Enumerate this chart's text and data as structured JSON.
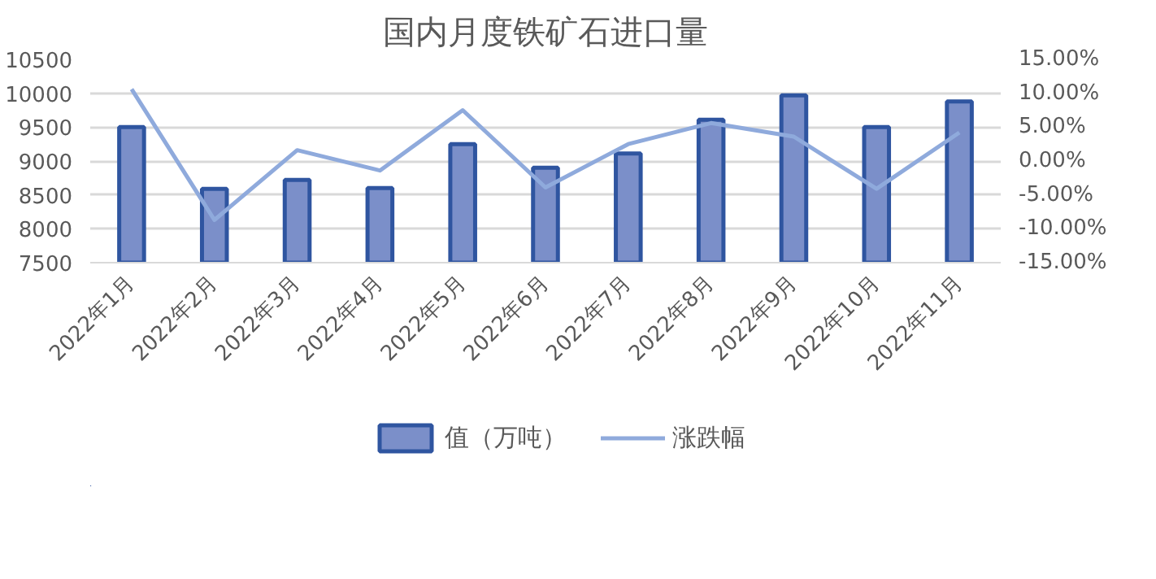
{
  "chart_data": {
    "type": "bar",
    "title": "国内月度铁矿石进口量",
    "categories": [
      "2022年1月",
      "2022年2月",
      "2022年3月",
      "2022年4月",
      "2022年5月",
      "2022年6月",
      "2022年7月",
      "2022年8月",
      "2022年9月",
      "2022年10月",
      "2022年11月"
    ],
    "series": [
      {
        "name": "值（万吨）",
        "color": "#7b8fc9",
        "values": [
          9500,
          8590,
          8720,
          8600,
          9250,
          8900,
          9110,
          9610,
          9970,
          9500,
          9880
        ]
      },
      {
        "name": "涨跌幅",
        "type": "line",
        "axis": "y2",
        "color": "#8faadc",
        "values": [
          10.6,
          -8.7,
          1.6,
          -1.4,
          7.5,
          -3.9,
          2.5,
          5.6,
          3.6,
          -4.1,
          4.2
        ]
      }
    ],
    "ylim": [
      7500,
      10500
    ],
    "yticks": [
      7500,
      8000,
      8500,
      9000,
      9500,
      10000,
      10500
    ],
    "y2lim": [
      -15,
      15
    ],
    "y2ticks": [
      {
        "value": -15,
        "label": "-15.00%"
      },
      {
        "value": -10,
        "label": "-10.00%"
      },
      {
        "value": -5,
        "label": "-5.00%"
      },
      {
        "value": 0,
        "label": "0.00%"
      },
      {
        "value": 5,
        "label": "5.00%"
      },
      {
        "value": 10,
        "label": "10.00%"
      },
      {
        "value": 15,
        "label": "15.00%"
      }
    ],
    "grid": "y",
    "legend": "bottom",
    "marker": "none",
    "line_style": "solid"
  }
}
